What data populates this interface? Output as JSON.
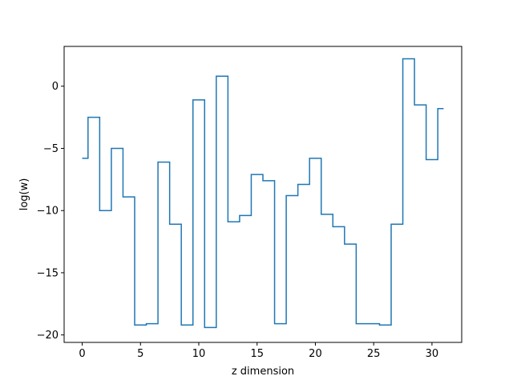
{
  "chart_data": {
    "type": "line",
    "drawstyle": "steps",
    "title": "",
    "xlabel": "z dimension",
    "ylabel": "log(w)",
    "xlim": [
      -1.55,
      32.55
    ],
    "ylim": [
      -20.6,
      3.2
    ],
    "xticks": [
      0,
      5,
      10,
      15,
      20,
      25,
      30
    ],
    "xtick_labels": [
      "0",
      "5",
      "10",
      "15",
      "20",
      "25",
      "30"
    ],
    "yticks": [
      0,
      -5,
      -10,
      -15,
      -20
    ],
    "ytick_labels": [
      "0",
      "−5",
      "−10",
      "−15",
      "−20"
    ],
    "grid": false,
    "legend": "none",
    "series": [
      {
        "color": "#1f77b4",
        "x": [
          0,
          1,
          2,
          3,
          4,
          5,
          6,
          7,
          8,
          9,
          10,
          11,
          12,
          13,
          14,
          15,
          16,
          17,
          18,
          19,
          20,
          21,
          22,
          23,
          24,
          25,
          26,
          27,
          28,
          29,
          30,
          31
        ],
        "values": [
          -5.8,
          -2.5,
          -10.0,
          -5.0,
          -8.9,
          -19.2,
          -19.1,
          -6.1,
          -11.1,
          -19.2,
          -1.1,
          -19.4,
          0.8,
          -10.9,
          -10.4,
          -7.1,
          -7.6,
          -19.1,
          -8.8,
          -7.9,
          -5.8,
          -10.3,
          -11.3,
          -12.7,
          -19.1,
          -19.1,
          -19.2,
          -11.1,
          2.2,
          -1.5,
          -5.9,
          -1.8
        ]
      }
    ]
  }
}
